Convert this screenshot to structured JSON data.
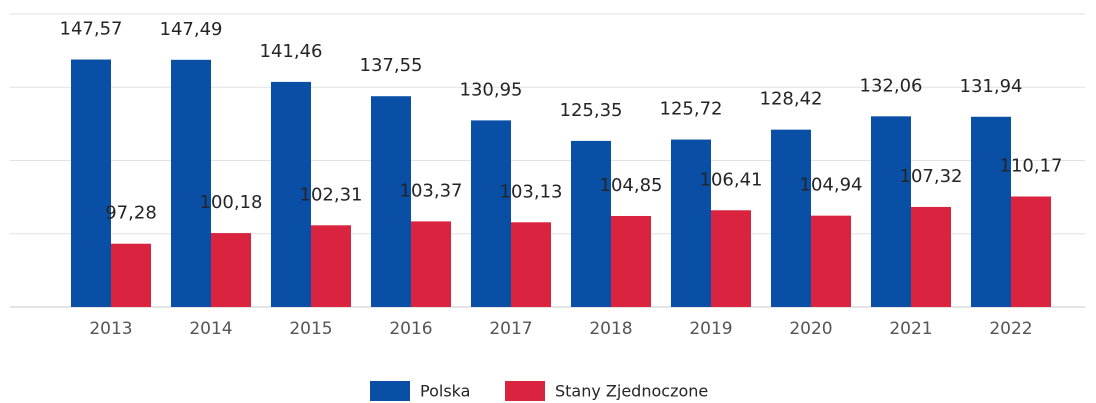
{
  "chart_data": {
    "type": "bar",
    "categories": [
      "2013",
      "2014",
      "2015",
      "2016",
      "2017",
      "2018",
      "2019",
      "2020",
      "2021",
      "2022"
    ],
    "series": [
      {
        "name": "Polska",
        "color": "#0a4fa6",
        "values": [
          147.57,
          147.49,
          141.46,
          137.55,
          130.95,
          125.35,
          125.72,
          128.42,
          132.06,
          131.94
        ],
        "value_labels": [
          "147,57",
          "147,49",
          "141,46",
          "137,55",
          "130,95",
          "125,35",
          "125,72",
          "128,42",
          "132,06",
          "131,94"
        ]
      },
      {
        "name": "Stany Zjednoczone",
        "color": "#d9233f",
        "values": [
          97.28,
          100.18,
          102.31,
          103.37,
          103.13,
          104.85,
          106.41,
          104.94,
          107.32,
          110.17
        ],
        "value_labels": [
          "97,28",
          "100,18",
          "102,31",
          "103,37",
          "103,13",
          "104,85",
          "106,41",
          "104,94",
          "107,32",
          "110,17"
        ]
      }
    ],
    "ylim": [
      80,
      160
    ],
    "yticks": [
      80,
      100,
      120,
      140,
      160
    ],
    "grid": true,
    "legend": "bottom"
  }
}
